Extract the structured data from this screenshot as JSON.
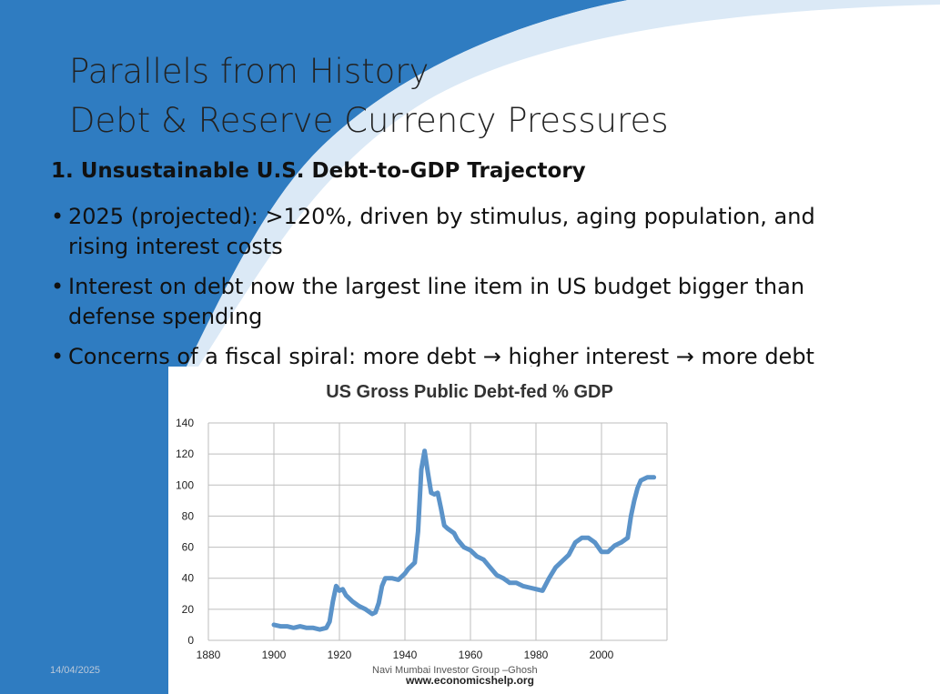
{
  "slide": {
    "title_line1": "Parallels from History",
    "title_line2": "Debt & Reserve Currency Pressures",
    "heading": "1. Unsustainable U.S. Debt-to-GDP Trajectory",
    "bullets": [
      "2025 (projected): >120%, driven by stimulus, aging population, and rising interest costs",
      "Interest on debt now the largest line item in US budget bigger than defense spending",
      "Concerns of a fiscal spiral: more debt → higher interest → more debt"
    ],
    "bullet_glyph": "•",
    "footer_date": "14/04/2025",
    "footer_center": "Navi Mumbai Investor Group –Ghosh"
  },
  "colors": {
    "theme_blue": "#2f7cc1",
    "line": "#5b93c9"
  },
  "chart_data": {
    "type": "line",
    "title": "US Gross Public Debt-fed % GDP",
    "source": "www.economicshelp.org",
    "xlabel": "",
    "ylabel": "",
    "xlim": [
      1880,
      2020
    ],
    "ylim": [
      0,
      140
    ],
    "x_ticks": [
      1880,
      1900,
      1920,
      1940,
      1960,
      1980,
      2000
    ],
    "y_ticks": [
      0,
      20,
      40,
      60,
      80,
      100,
      120,
      140
    ],
    "grid": true,
    "series": [
      {
        "x": [
          1900,
          1902,
          1904,
          1906,
          1908,
          1910,
          1912,
          1914,
          1916,
          1917,
          1918,
          1919,
          1920,
          1921,
          1922,
          1924,
          1926,
          1928,
          1930,
          1931,
          1932,
          1933,
          1934,
          1936,
          1938,
          1940,
          1941,
          1942,
          1943,
          1944,
          1945,
          1946,
          1947,
          1948,
          1949,
          1950,
          1951,
          1952,
          1953,
          1955,
          1956,
          1958,
          1960,
          1962,
          1964,
          1966,
          1968,
          1970,
          1972,
          1974,
          1976,
          1978,
          1980,
          1982,
          1984,
          1986,
          1988,
          1990,
          1992,
          1994,
          1996,
          1998,
          2000,
          2002,
          2004,
          2006,
          2008,
          2009,
          2010,
          2011,
          2012,
          2014,
          2016
        ],
        "y": [
          10,
          9,
          9,
          8,
          9,
          8,
          8,
          7,
          8,
          12,
          25,
          35,
          32,
          33,
          29,
          25,
          22,
          20,
          17,
          18,
          24,
          35,
          40,
          40,
          39,
          43,
          46,
          48,
          50,
          70,
          110,
          122,
          108,
          95,
          94,
          95,
          85,
          74,
          72,
          69,
          65,
          60,
          58,
          54,
          52,
          47,
          42,
          40,
          37,
          37,
          35,
          34,
          33,
          32,
          40,
          47,
          51,
          55,
          63,
          66,
          66,
          63,
          57,
          57,
          61,
          63,
          66,
          80,
          90,
          98,
          103,
          105,
          105
        ]
      }
    ]
  }
}
